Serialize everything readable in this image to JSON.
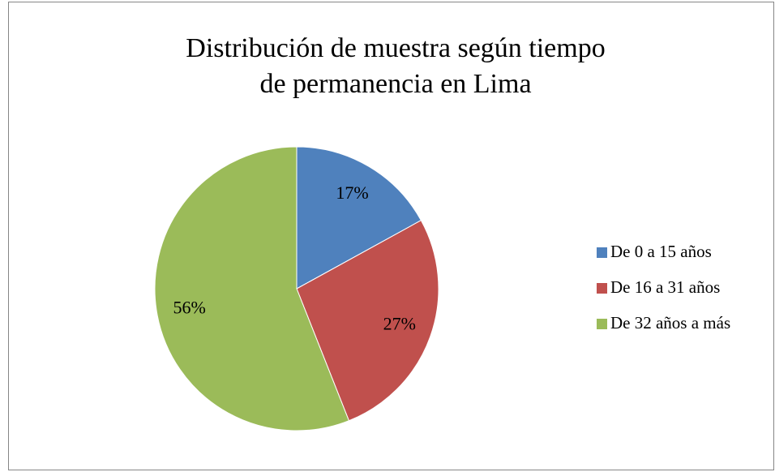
{
  "chart_data": {
    "type": "pie",
    "title": [
      "Distribución de muestra según tiempo",
      "de permanencia en Lima"
    ],
    "categories": [
      "De 0 a 15 años",
      "De 16 a 31 años",
      "De 32 años a más"
    ],
    "values": [
      17,
      27,
      56
    ],
    "value_labels": [
      "17%",
      "27%",
      "56%"
    ],
    "colors": [
      "#4f81bd",
      "#c0504d",
      "#9bbb59"
    ],
    "legend": "right"
  }
}
